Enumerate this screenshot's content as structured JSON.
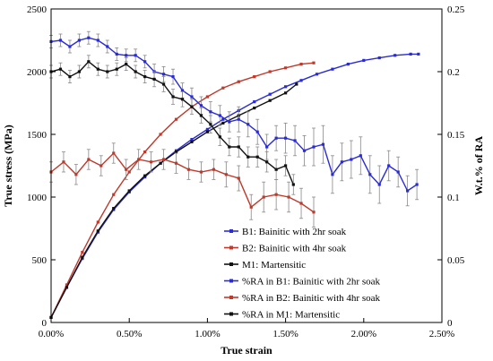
{
  "chart_data": {
    "type": "line",
    "xlabel": "True strain",
    "ylabel_left": "True stress (MPa)",
    "ylabel_right": "W.t.% of RA",
    "xlim": [
      0,
      0.025
    ],
    "ylim_left": [
      0,
      2500
    ],
    "ylim_right": [
      0,
      0.25
    ],
    "x_ticks": [
      "0.00%",
      "0.50%",
      "1.00%",
      "1.50%",
      "2.00%",
      "2.50%"
    ],
    "y_left_ticks": [
      "0",
      "500",
      "1000",
      "1500",
      "2000",
      "2500"
    ],
    "y_right_ticks": [
      "0",
      "0.05",
      "0.1",
      "0.15",
      "0.2",
      "0.25"
    ],
    "grid": false,
    "legend_position": "bottom-center",
    "series": [
      {
        "name": "B1: Bainitic with 2hr soak",
        "color": "#2b2bd6",
        "axis": "left",
        "style": "line-with-squares",
        "x": [
          0.0,
          0.001,
          0.002,
          0.003,
          0.004,
          0.005,
          0.006,
          0.007,
          0.008,
          0.009,
          0.01,
          0.011,
          0.012,
          0.013,
          0.014,
          0.015,
          0.016,
          0.017,
          0.018,
          0.019,
          0.02,
          0.021,
          0.022,
          0.023,
          0.0235
        ],
        "y": [
          40,
          280,
          510,
          720,
          900,
          1040,
          1160,
          1270,
          1370,
          1460,
          1540,
          1620,
          1690,
          1760,
          1820,
          1880,
          1930,
          1980,
          2020,
          2060,
          2090,
          2110,
          2130,
          2140,
          2140
        ]
      },
      {
        "name": "B2: Bainitic with 4hr soak",
        "color": "#c0392b",
        "axis": "left",
        "style": "line-with-squares",
        "x": [
          0.0,
          0.001,
          0.002,
          0.003,
          0.004,
          0.005,
          0.006,
          0.007,
          0.008,
          0.009,
          0.01,
          0.011,
          0.012,
          0.013,
          0.014,
          0.015,
          0.016,
          0.0168
        ],
        "y": [
          40,
          300,
          560,
          800,
          1020,
          1200,
          1360,
          1500,
          1620,
          1720,
          1800,
          1870,
          1920,
          1960,
          2000,
          2030,
          2060,
          2070
        ]
      },
      {
        "name": "M1: Martensitic",
        "color": "#111111",
        "axis": "left",
        "style": "line-with-squares",
        "x": [
          0.0,
          0.001,
          0.002,
          0.003,
          0.004,
          0.005,
          0.006,
          0.007,
          0.008,
          0.009,
          0.01,
          0.011,
          0.012,
          0.013,
          0.014,
          0.015,
          0.0157
        ],
        "y": [
          40,
          280,
          520,
          730,
          910,
          1050,
          1170,
          1270,
          1360,
          1440,
          1520,
          1590,
          1650,
          1710,
          1770,
          1830,
          1900
        ]
      },
      {
        "name": "%RA in B1: Bainitic with 2hr soak",
        "color": "#2b2bd6",
        "axis": "right",
        "style": "line-with-errorbars",
        "x": [
          0.0,
          0.0006,
          0.0012,
          0.0018,
          0.0024,
          0.003,
          0.0036,
          0.0042,
          0.0048,
          0.0054,
          0.006,
          0.0066,
          0.0072,
          0.0078,
          0.0084,
          0.009,
          0.0096,
          0.0102,
          0.0108,
          0.0114,
          0.012,
          0.0126,
          0.0132,
          0.0138,
          0.0144,
          0.015,
          0.0156,
          0.0162,
          0.0168,
          0.0174,
          0.018,
          0.0186,
          0.0192,
          0.0198,
          0.0204,
          0.021,
          0.0216,
          0.0222,
          0.0228,
          0.0234
        ],
        "y": [
          0.224,
          0.225,
          0.22,
          0.225,
          0.227,
          0.225,
          0.22,
          0.214,
          0.213,
          0.213,
          0.208,
          0.2,
          0.198,
          0.196,
          0.185,
          0.18,
          0.173,
          0.168,
          0.165,
          0.16,
          0.162,
          0.158,
          0.152,
          0.14,
          0.147,
          0.147,
          0.145,
          0.137,
          0.14,
          0.142,
          0.118,
          0.128,
          0.13,
          0.133,
          0.118,
          0.11,
          0.125,
          0.12,
          0.105,
          0.11
        ],
        "err": [
          0.005,
          0.005,
          0.005,
          0.005,
          0.005,
          0.005,
          0.005,
          0.005,
          0.005,
          0.005,
          0.005,
          0.006,
          0.006,
          0.006,
          0.006,
          0.007,
          0.007,
          0.008,
          0.008,
          0.008,
          0.01,
          0.01,
          0.01,
          0.01,
          0.01,
          0.012,
          0.012,
          0.012,
          0.015,
          0.015,
          0.015,
          0.015,
          0.015,
          0.015,
          0.015,
          0.015,
          0.012,
          0.012,
          0.012,
          0.012
        ]
      },
      {
        "name": "%RA in B2: Bainitic with 4hr soak",
        "color": "#c0392b",
        "axis": "right",
        "style": "line-with-errorbars",
        "x": [
          0.0,
          0.0008,
          0.0016,
          0.0024,
          0.0032,
          0.004,
          0.0048,
          0.0056,
          0.0064,
          0.0072,
          0.008,
          0.0088,
          0.0096,
          0.0104,
          0.0112,
          0.012,
          0.0128,
          0.0136,
          0.0144,
          0.0152,
          0.016,
          0.0168
        ],
        "y": [
          0.12,
          0.128,
          0.118,
          0.13,
          0.125,
          0.135,
          0.122,
          0.13,
          0.128,
          0.13,
          0.127,
          0.122,
          0.12,
          0.122,
          0.118,
          0.115,
          0.092,
          0.1,
          0.102,
          0.1,
          0.095,
          0.088
        ],
        "err": [
          0.008,
          0.008,
          0.008,
          0.008,
          0.008,
          0.008,
          0.008,
          0.008,
          0.008,
          0.008,
          0.008,
          0.008,
          0.008,
          0.008,
          0.01,
          0.01,
          0.01,
          0.012,
          0.012,
          0.012,
          0.012,
          0.012
        ]
      },
      {
        "name": "%RA in M1: Martensitic",
        "color": "#111111",
        "axis": "right",
        "style": "line-with-errorbars",
        "x": [
          0.0,
          0.0006,
          0.0012,
          0.0018,
          0.0024,
          0.003,
          0.0036,
          0.0042,
          0.0048,
          0.0054,
          0.006,
          0.0066,
          0.0072,
          0.0078,
          0.0084,
          0.009,
          0.0096,
          0.0102,
          0.0108,
          0.0114,
          0.012,
          0.0126,
          0.0132,
          0.0138,
          0.0144,
          0.015,
          0.0155
        ],
        "y": [
          0.2,
          0.202,
          0.196,
          0.2,
          0.208,
          0.202,
          0.2,
          0.202,
          0.206,
          0.2,
          0.196,
          0.194,
          0.19,
          0.18,
          0.178,
          0.172,
          0.165,
          0.158,
          0.148,
          0.14,
          0.14,
          0.132,
          0.132,
          0.128,
          0.122,
          0.125,
          0.11
        ],
        "err": [
          0.005,
          0.005,
          0.005,
          0.005,
          0.005,
          0.005,
          0.005,
          0.005,
          0.005,
          0.005,
          0.005,
          0.006,
          0.006,
          0.006,
          0.006,
          0.006,
          0.006,
          0.007,
          0.007,
          0.007,
          0.008,
          0.008,
          0.008,
          0.008,
          0.008,
          0.008,
          0.008
        ]
      }
    ]
  }
}
